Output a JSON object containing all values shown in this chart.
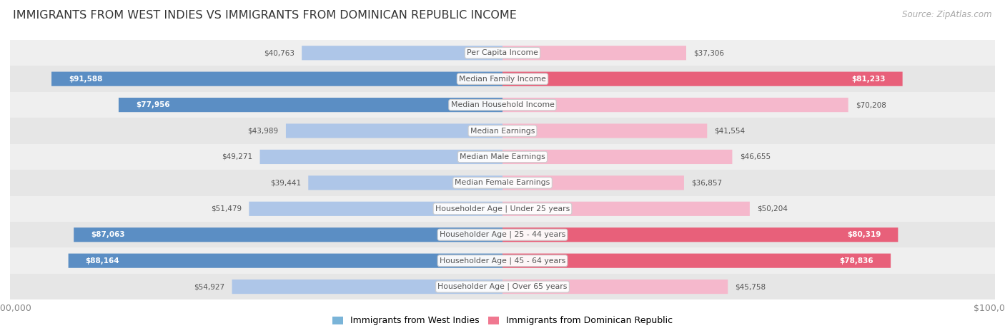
{
  "title": "IMMIGRANTS FROM WEST INDIES VS IMMIGRANTS FROM DOMINICAN REPUBLIC INCOME",
  "source": "Source: ZipAtlas.com",
  "categories": [
    "Per Capita Income",
    "Median Family Income",
    "Median Household Income",
    "Median Earnings",
    "Median Male Earnings",
    "Median Female Earnings",
    "Householder Age | Under 25 years",
    "Householder Age | 25 - 44 years",
    "Householder Age | 45 - 64 years",
    "Householder Age | Over 65 years"
  ],
  "west_indies_values": [
    40763,
    91588,
    77956,
    43989,
    49271,
    39441,
    51479,
    87063,
    88164,
    54927
  ],
  "dominican_values": [
    37306,
    81233,
    70208,
    41554,
    46655,
    36857,
    50204,
    80319,
    78836,
    45758
  ],
  "west_indies_labels": [
    "$40,763",
    "$91,588",
    "$77,956",
    "$43,989",
    "$49,271",
    "$39,441",
    "$51,479",
    "$87,063",
    "$88,164",
    "$54,927"
  ],
  "dominican_labels": [
    "$37,306",
    "$81,233",
    "$70,208",
    "$41,554",
    "$46,655",
    "$36,857",
    "$50,204",
    "$80,319",
    "$78,836",
    "$45,758"
  ],
  "max_value": 100000,
  "west_indies_color_light": "#aec6e8",
  "west_indies_color_dark": "#5b8ec4",
  "dominican_color_light": "#f5b8cc",
  "dominican_color_dark": "#e8607a",
  "bg_even": "#efefef",
  "bg_odd": "#e6e6e6",
  "bg_white": "#ffffff",
  "legend_blue": "#7ab4d8",
  "legend_pink": "#f07890",
  "threshold_pct": 0.72,
  "cat_label_color": "#555555",
  "val_label_outside_color": "#555555",
  "val_label_inside_color": "#ffffff"
}
